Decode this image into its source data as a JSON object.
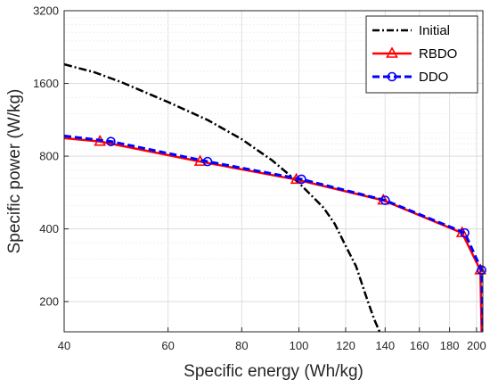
{
  "chart_data": {
    "type": "line",
    "title": "",
    "xlabel": "Specific energy (Wh/kg)",
    "ylabel": "Specific power (W/kg)",
    "xscale": "log",
    "yscale": "log",
    "xlim": [
      40,
      205
    ],
    "ylim": [
      150,
      3200
    ],
    "xticks": [
      40,
      60,
      80,
      100,
      120,
      140,
      160,
      180,
      200
    ],
    "yticks": [
      200,
      400,
      800,
      1600,
      3200
    ],
    "grid": true,
    "legend_position": "top-right",
    "series": [
      {
        "name": "Initial",
        "color": "#000000",
        "linestyle": "dash-dot",
        "marker": "none",
        "x": [
          40,
          45,
          50,
          60,
          70,
          80,
          90,
          100,
          110,
          115,
          120,
          125,
          130,
          134,
          137
        ],
        "y": [
          1920,
          1780,
          1620,
          1340,
          1130,
          940,
          770,
          620,
          490,
          420,
          340,
          280,
          210,
          170,
          150
        ]
      },
      {
        "name": "RBDO",
        "color": "#ff0000",
        "linestyle": "solid",
        "marker": "triangle",
        "x": [
          40,
          46,
          68,
          99,
          139,
          189,
          203,
          204
        ],
        "y": [
          950,
          920,
          760,
          640,
          525,
          385,
          270,
          150
        ]
      },
      {
        "name": "DDO",
        "color": "#0000ff",
        "linestyle": "dashed",
        "marker": "circle",
        "x": [
          40,
          48,
          70,
          101,
          140,
          191,
          204,
          205
        ],
        "y": [
          970,
          920,
          760,
          642,
          525,
          385,
          270,
          150
        ]
      }
    ]
  }
}
